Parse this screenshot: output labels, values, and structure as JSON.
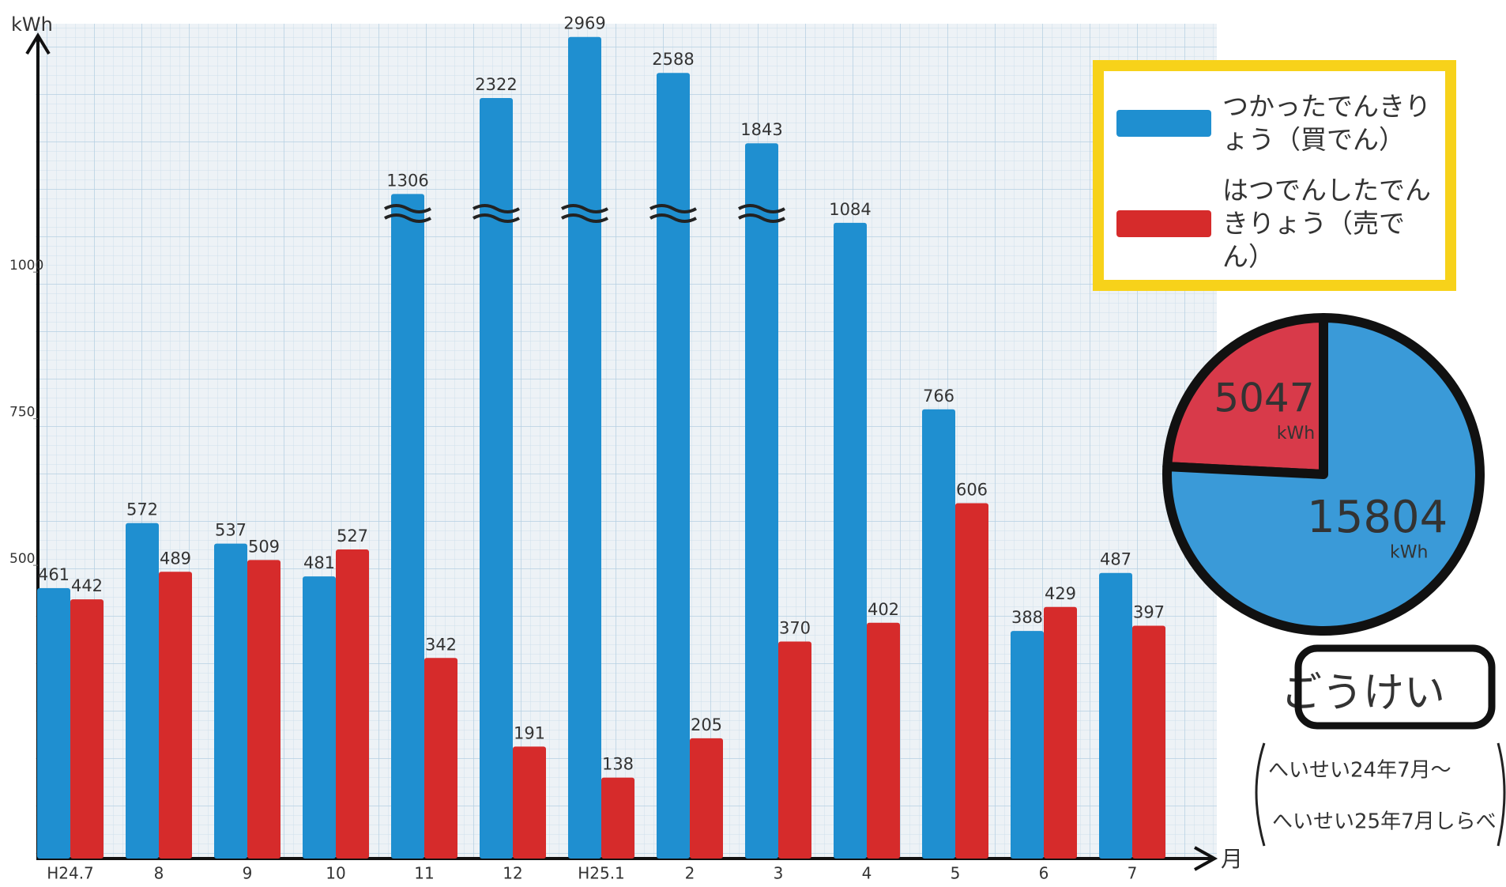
{
  "chart_data": [
    {
      "type": "bar",
      "y_label": "kWh",
      "x_label": "月",
      "categories": [
        "H24.7",
        "8",
        "9",
        "10",
        "11",
        "12",
        "H25.1",
        "2",
        "3",
        "4",
        "5",
        "6",
        "7"
      ],
      "series": [
        {
          "name": "つかったでんきりょう（買でん）",
          "color": "#1f8fd0",
          "values": [
            461,
            572,
            537,
            481,
            1306,
            2322,
            2969,
            2588,
            1843,
            1084,
            766,
            388,
            487
          ]
        },
        {
          "name": "はつでんしたでんきりょう（売でん）",
          "color": "#d62b2b",
          "values": [
            442,
            489,
            509,
            527,
            342,
            191,
            138,
            205,
            370,
            402,
            606,
            429,
            397
          ]
        }
      ],
      "ylim": [
        0,
        3000
      ],
      "axis_break": 1100,
      "yticks": [
        500,
        750,
        1000
      ],
      "legend": "top-right"
    },
    {
      "type": "pie",
      "title": "ごうけい",
      "subtitle": [
        "へいせい24年7月〜",
        "へいせい25年7月しらべ"
      ],
      "values": [
        5047,
        15804
      ],
      "colors": [
        "#d83a4a",
        "#3a9ad8"
      ],
      "unit": "kWh",
      "counterclock": true
    }
  ]
}
